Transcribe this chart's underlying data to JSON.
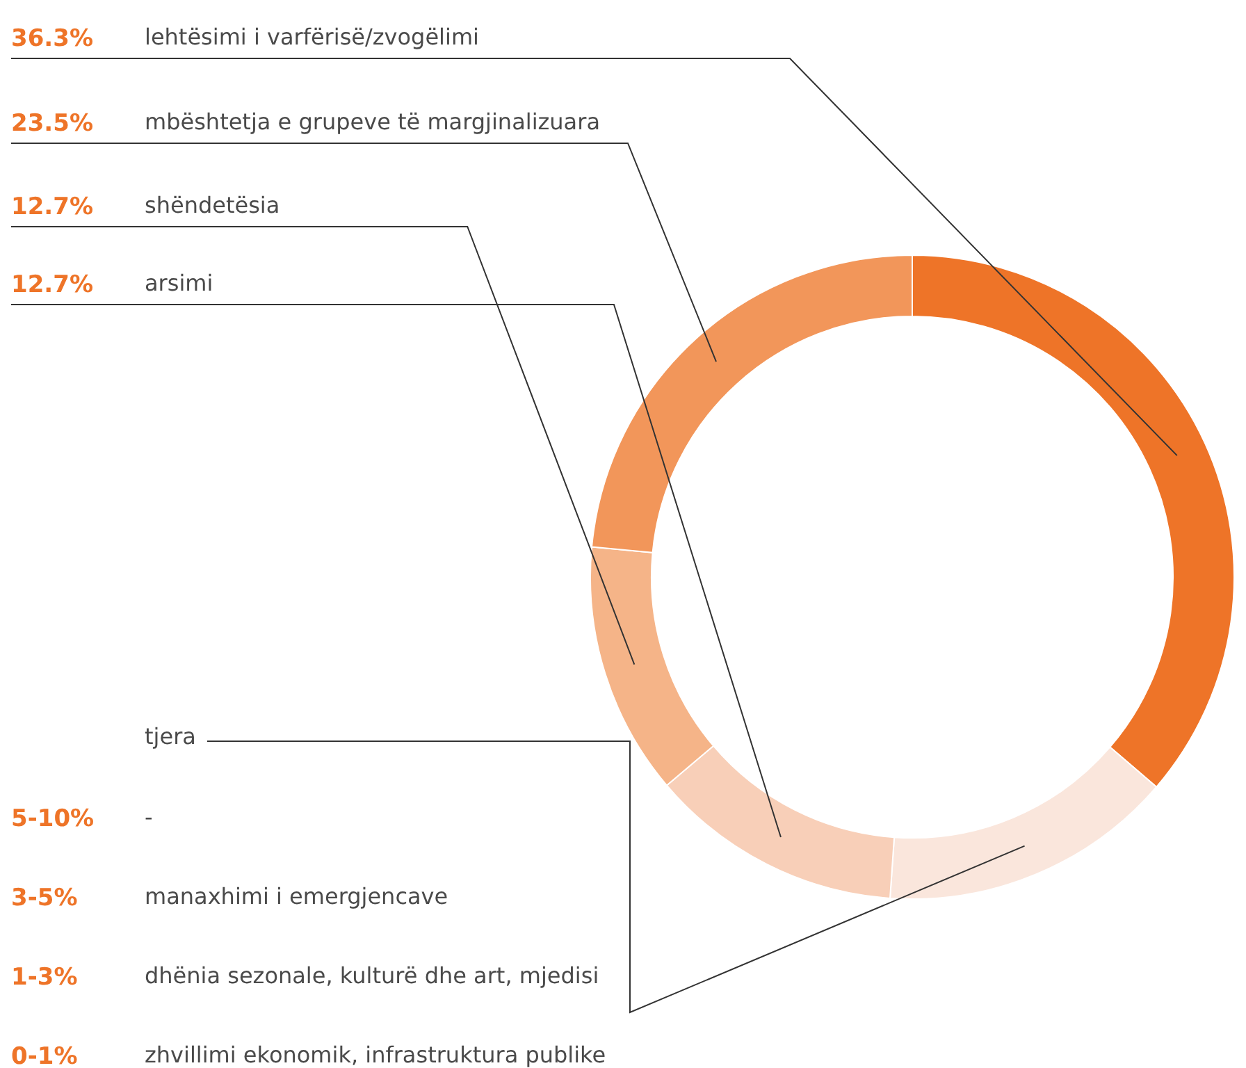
{
  "chart_data": {
    "type": "donut",
    "categories": [
      "lehtësimi i varfërisë/zvogëlimi",
      "mbështetja e grupeve të margjinalizuara",
      "shëndetësia",
      "arsimi",
      "tjera"
    ],
    "values": [
      36.3,
      23.5,
      12.7,
      12.7,
      14.8
    ],
    "colors": [
      "#ee7428",
      "#f2965a",
      "#f5b488",
      "#f8cfb8",
      "#fae6dc"
    ],
    "value_labels": [
      "36.3%",
      "23.5%",
      "12.7%",
      "12.7%",
      null
    ],
    "annotations": [
      "5-10%",
      "-",
      "3-5%",
      "manaxhimi i emergjencave",
      "1-3%",
      "dhënia sezonale, kulturë dhe art, mjedisi",
      "0-1%",
      "zhvillimi ekonomik, infrastruktura publike"
    ],
    "legend": false
  }
}
